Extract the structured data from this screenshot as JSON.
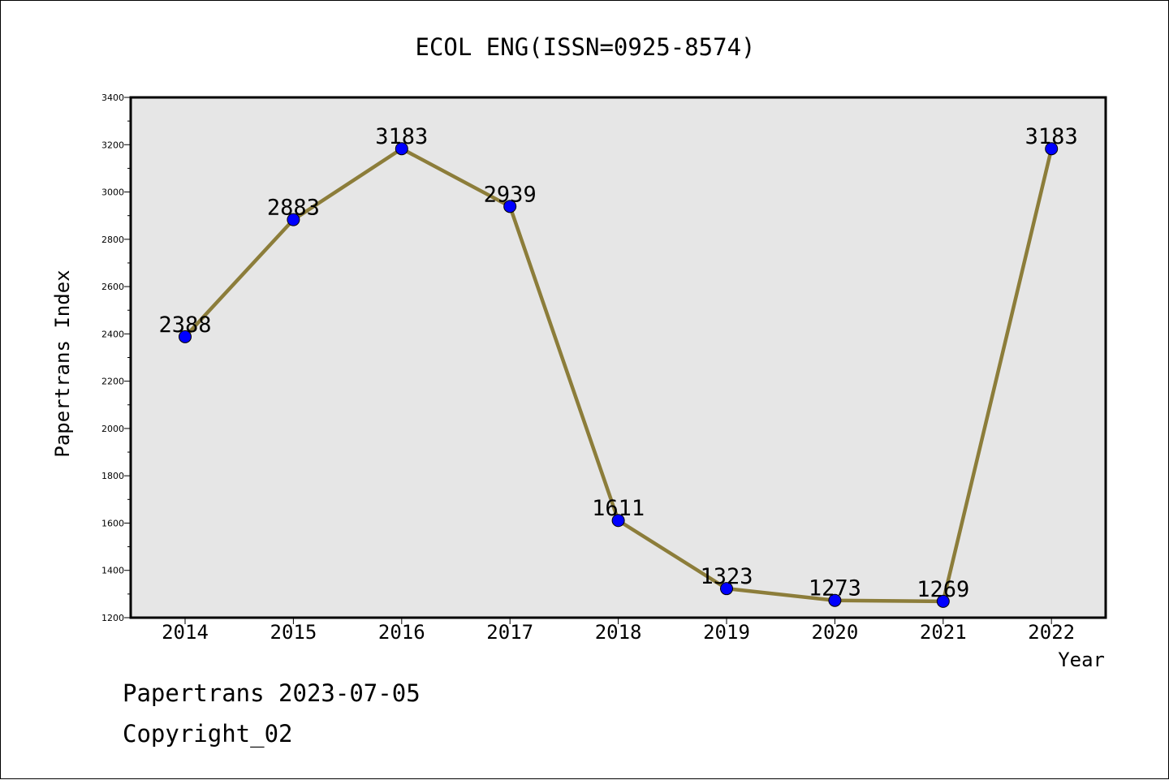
{
  "chart_data": {
    "type": "line",
    "title": "ECOL ENG(ISSN=0925-8574)",
    "xlabel": "Year",
    "ylabel": "Papertrans Index",
    "categories": [
      "2014",
      "2015",
      "2016",
      "2017",
      "2018",
      "2019",
      "2020",
      "2021",
      "2022"
    ],
    "series": [
      {
        "values": [
          2388,
          2883,
          3183,
          2939,
          1611,
          1323,
          1273,
          1269,
          3183
        ],
        "data_labels": [
          "2388",
          "2883",
          "3183",
          "2939",
          "1611",
          "1323",
          "1273",
          "1269",
          "3183"
        ]
      }
    ],
    "ylim": [
      1200,
      3400
    ],
    "yticks": [
      1200,
      1400,
      1600,
      1800,
      2000,
      2200,
      2400,
      2600,
      2800,
      3000,
      3200,
      3400
    ],
    "grid": false,
    "colors": {
      "line": "#8c7d3a",
      "marker": "#0000ff",
      "plot_background": "#e6e6e6"
    }
  },
  "footer": {
    "date_line": "Papertrans 2023-07-05",
    "copyright_line": "Copyright_02"
  }
}
